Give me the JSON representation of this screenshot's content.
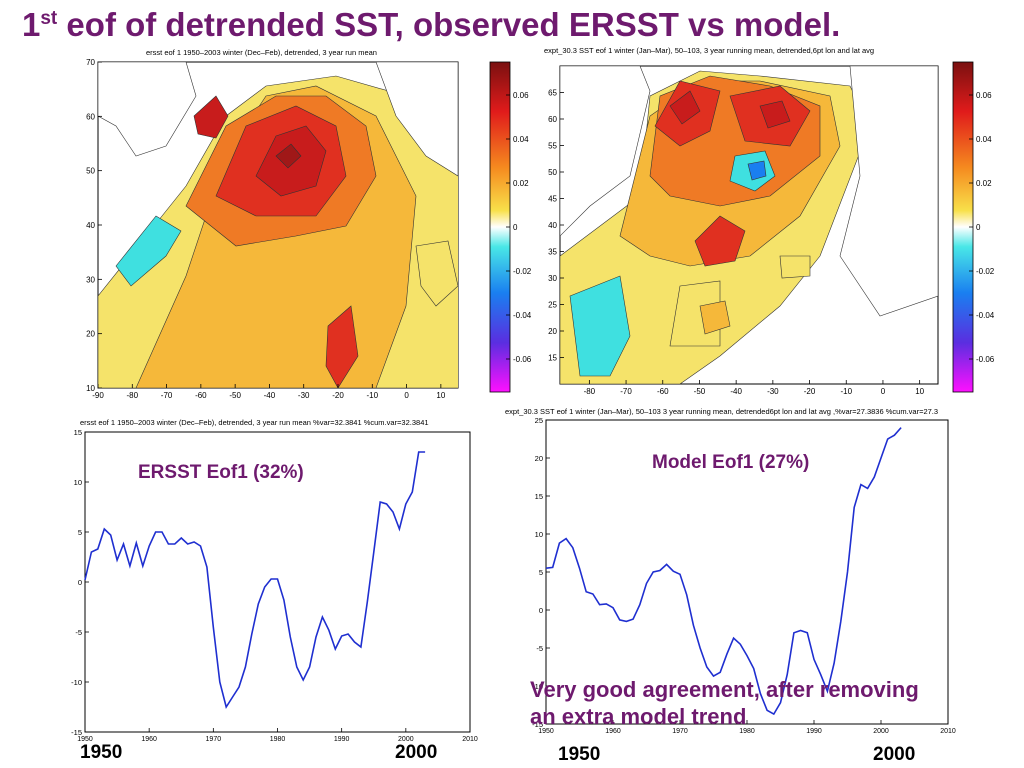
{
  "slide": {
    "title_main": "1",
    "title_sup": "st",
    "title_rest": " eof of detrended SST, observed ERSST vs model.",
    "note_line1": "Very good agreement, after removing",
    "note_line2": "an extra model trend",
    "colors": {
      "title": "#6e1a6e",
      "line": "#1f2fd0"
    }
  },
  "chart_data": [
    {
      "type": "heatmap",
      "title": "ersst eof 1 1950–2003 winter (Dec–Feb), detrended, 3 year run mean",
      "x_ticks": [
        -90,
        -80,
        -70,
        -60,
        -50,
        -40,
        -30,
        -20,
        -10,
        0,
        10
      ],
      "y_ticks": [
        10,
        20,
        30,
        40,
        50,
        60,
        70
      ],
      "xlim": [
        -90,
        15
      ],
      "ylim": [
        10,
        70
      ],
      "colorbar": {
        "ticks": [
          "0.06",
          "0.04",
          "0.02",
          "0",
          "-0.02",
          "-0.04",
          "-0.06"
        ],
        "range": [
          -0.075,
          0.075
        ]
      }
    },
    {
      "type": "heatmap",
      "title": "expt_30.3 SST eof 1 winter (Jan–Mar), 50–103, 3 year running mean, detrended,6pt lon and lat avg",
      "x_ticks": [
        -80,
        -70,
        -60,
        -50,
        -40,
        -30,
        -20,
        -10,
        0,
        10
      ],
      "y_ticks": [
        15,
        20,
        25,
        30,
        35,
        40,
        45,
        50,
        55,
        60,
        65
      ],
      "xlim": [
        -88,
        15
      ],
      "ylim": [
        10,
        70
      ],
      "colorbar": {
        "ticks": [
          "0.06",
          "0.04",
          "0.02",
          "0",
          "-0.02",
          "-0.04",
          "-0.06"
        ],
        "range": [
          -0.075,
          0.075
        ]
      }
    },
    {
      "type": "line",
      "title": "ersst eof 1 1950–2003 winter (Dec–Feb), detrended, 3 year run mean %var=32.3841 %cum.var=32.3841",
      "annotation": "ERSST Eof1 (32%)",
      "x_ticks": [
        1950,
        1960,
        1970,
        1980,
        1990,
        2000,
        2010
      ],
      "y_ticks": [
        -15,
        -10,
        -5,
        0,
        5,
        10,
        15
      ],
      "xlim": [
        1950,
        2010
      ],
      "ylim": [
        -15,
        15
      ],
      "x_below_labels": [
        "1950",
        "2000"
      ],
      "series": [
        {
          "x": [
            1950,
            1951,
            1952,
            1953,
            1954,
            1955,
            1956,
            1957,
            1958,
            1959,
            1960,
            1961,
            1962,
            1963,
            1964,
            1965,
            1966,
            1967,
            1968,
            1969,
            1970,
            1971,
            1972,
            1973,
            1974,
            1975,
            1976,
            1977,
            1978,
            1979,
            1980,
            1981,
            1982,
            1983,
            1984,
            1985,
            1986,
            1987,
            1988,
            1989,
            1990,
            1991,
            1992,
            1993,
            1994,
            1995,
            1996,
            1997,
            1998,
            1999,
            2000,
            2001,
            2002,
            2003
          ],
          "values": [
            0.2,
            3.0,
            3.3,
            5.3,
            4.7,
            2.2,
            3.8,
            1.6,
            3.9,
            1.6,
            3.6,
            5.0,
            5.0,
            3.8,
            3.8,
            4.4,
            3.8,
            4.0,
            3.6,
            1.5,
            -4.5,
            -10.0,
            -12.5,
            -11.5,
            -10.5,
            -8.5,
            -5.2,
            -2.2,
            -0.5,
            0.3,
            0.3,
            -1.8,
            -5.5,
            -8.5,
            -9.8,
            -8.5,
            -5.5,
            -3.5,
            -4.8,
            -6.7,
            -5.4,
            -5.2,
            -6.0,
            -6.5,
            -2.0,
            3.0,
            8.0,
            7.8,
            7.0,
            5.3,
            7.8,
            9.0,
            13.0,
            13.0
          ]
        }
      ]
    },
    {
      "type": "line",
      "title": "expt_30.3 SST eof 1 winter (Jan–Mar), 50–103 3 year running mean, detrended6pt lon and lat avg ,%var=27.3836 %cum.var=27.3",
      "annotation": "Model Eof1 (27%)",
      "x_ticks": [
        1950,
        1960,
        1970,
        1980,
        1990,
        2000,
        2010
      ],
      "y_ticks": [
        -15,
        -10,
        -5,
        0,
        5,
        10,
        15,
        20,
        25
      ],
      "xlim": [
        1950,
        2010
      ],
      "ylim": [
        -15,
        25
      ],
      "x_below_labels": [
        "1950",
        "2000"
      ],
      "series": [
        {
          "x": [
            1950,
            1951,
            1952,
            1953,
            1954,
            1955,
            1956,
            1957,
            1958,
            1959,
            1960,
            1961,
            1962,
            1963,
            1964,
            1965,
            1966,
            1967,
            1968,
            1969,
            1970,
            1971,
            1972,
            1973,
            1974,
            1975,
            1976,
            1977,
            1978,
            1979,
            1980,
            1981,
            1982,
            1983,
            1984,
            1985,
            1986,
            1987,
            1988,
            1989,
            1990,
            1991,
            1992,
            1993,
            1994,
            1995,
            1996,
            1997,
            1998,
            1999,
            2000,
            2001,
            2002,
            2003
          ],
          "values": [
            5.5,
            5.6,
            8.8,
            9.4,
            8.2,
            5.5,
            2.4,
            2.1,
            0.7,
            0.8,
            0.3,
            -1.3,
            -1.5,
            -1.2,
            0.7,
            3.5,
            5.0,
            5.2,
            6.0,
            5.1,
            4.7,
            2.0,
            -2.0,
            -5.0,
            -7.5,
            -8.7,
            -8.2,
            -5.8,
            -3.7,
            -4.5,
            -6.0,
            -7.7,
            -11.0,
            -13.2,
            -13.7,
            -12.2,
            -8.5,
            -3.0,
            -2.7,
            -3.0,
            -6.5,
            -8.5,
            -10.7,
            -7.0,
            -1.5,
            5.0,
            13.5,
            16.5,
            16.0,
            17.5,
            20.0,
            22.5,
            23.0,
            24.0
          ]
        }
      ]
    }
  ]
}
